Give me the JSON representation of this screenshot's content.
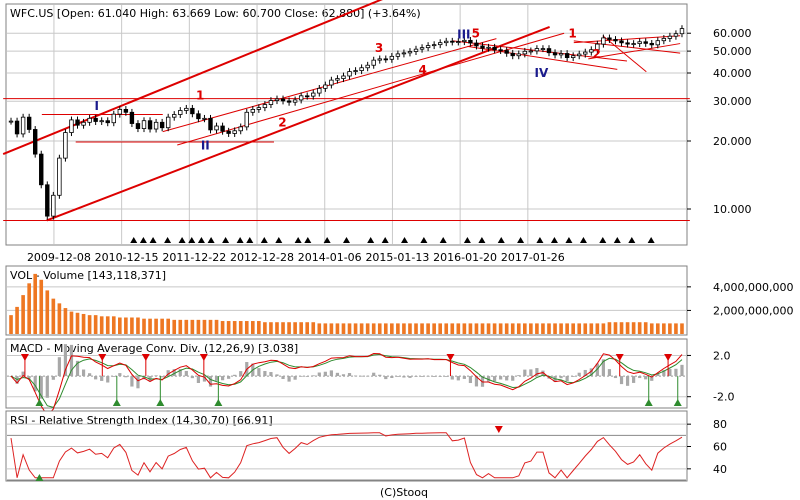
{
  "copyright": "(C)Stooq",
  "colors": {
    "bg": "#ffffff",
    "panel_border": "#808080",
    "grid": "#c8c8c8",
    "red": "#dd0000",
    "green": "#2e8b2e",
    "blue": "#1a1a8c",
    "volume": "#ee7722",
    "hist": "#a8a8a8",
    "rsi": "#dd2222"
  },
  "price": {
    "title": "WFC.US [Open: 61.040  High: 63.669  Low: 60.700  Close: 62.880] (+3.64%)",
    "y_ticks": [
      {
        "value": 10,
        "label": "10.000"
      },
      {
        "value": 20,
        "label": "20.000"
      },
      {
        "value": 30,
        "label": "30.000"
      },
      {
        "value": 40,
        "label": "40.000"
      },
      {
        "value": 50,
        "label": "50.000"
      },
      {
        "value": 60,
        "label": "60.000"
      }
    ],
    "x_ticks": [
      {
        "t": 9.5,
        "label": "2009-12-08"
      },
      {
        "t": 23.5,
        "label": "2010-12-15"
      },
      {
        "t": 37.5,
        "label": "2011-12-22"
      },
      {
        "t": 51.5,
        "label": "2012-12-28"
      },
      {
        "t": 65.5,
        "label": "2014-01-06"
      },
      {
        "t": 79.5,
        "label": "2015-01-13"
      },
      {
        "t": 93.5,
        "label": "2016-01-20"
      },
      {
        "t": 107.5,
        "label": "2017-01-26"
      }
    ],
    "annotations": [
      {
        "t": 18.5,
        "y": 27.5,
        "text": "I",
        "color": "blue"
      },
      {
        "t": 39.5,
        "y": 30.5,
        "text": "1",
        "color": "red"
      },
      {
        "t": 40.5,
        "y": 18.3,
        "text": "II",
        "color": "blue"
      },
      {
        "t": 56.5,
        "y": 23.2,
        "text": "2",
        "color": "red"
      },
      {
        "t": 76.5,
        "y": 49.5,
        "text": "3",
        "color": "red"
      },
      {
        "t": 85.5,
        "y": 39.5,
        "text": "4",
        "color": "red"
      },
      {
        "t": 93.5,
        "y": 56.8,
        "text": "III",
        "color": "blue"
      },
      {
        "t": 96.5,
        "y": 57.5,
        "text": "5",
        "color": "red"
      },
      {
        "t": 109.5,
        "y": 38.5,
        "text": "IV",
        "color": "blue"
      },
      {
        "t": 116.5,
        "y": 57.5,
        "text": "1",
        "color": "red"
      },
      {
        "t": 121.5,
        "y": 46.5,
        "text": "2",
        "color": "red"
      }
    ]
  },
  "volume": {
    "title": "VOL - Volume [143,118,371]",
    "y_ticks": [
      {
        "value": 2000000000,
        "label": "2,000,000,000"
      },
      {
        "value": 4000000000,
        "label": "4,000,000,000"
      }
    ]
  },
  "macd": {
    "title": "MACD - Moving Average Conv. Div. (12,26,9) [3.038]",
    "y_ticks": [
      {
        "value": 2,
        "label": "2.0"
      },
      {
        "value": -2,
        "label": "-2.0"
      }
    ]
  },
  "rsi": {
    "title": "RSI - Relative Strength Index (14,30,70) [66.91]",
    "y_ticks": [
      {
        "value": 40,
        "label": "40"
      },
      {
        "value": 60,
        "label": "60"
      },
      {
        "value": 80,
        "label": "80"
      }
    ]
  },
  "chart_data": {
    "type": "line",
    "title": "WFC.US [Open: 61.040  High: 63.669  Low: 60.700  Close: 62.880] (+3.64%)",
    "scale": "log",
    "ylim": [
      7,
      80
    ],
    "grid": true,
    "close": [
      24.5,
      21.5,
      25.5,
      22.5,
      17.5,
      12.8,
      9.3,
      11.5,
      16.8,
      21.8,
      24.8,
      23.5,
      24.2,
      25.2,
      24.4,
      24.6,
      24.1,
      26.3,
      27.6,
      26.8,
      23.9,
      22.7,
      24.6,
      22.6,
      24.2,
      22.9,
      25.5,
      26.2,
      27.3,
      27.9,
      26.4,
      25.1,
      25.2,
      22.4,
      23.3,
      22.1,
      21.6,
      22.2,
      23.1,
      26.8,
      27.6,
      28.1,
      29.0,
      30.2,
      30.7,
      30.1,
      29.7,
      30.4,
      31.7,
      31.6,
      32.6,
      34.2,
      35.4,
      37.2,
      37.8,
      38.8,
      40.6,
      41.0,
      42.2,
      43.3,
      45.6,
      46.2,
      46.0,
      47.4,
      48.6,
      49.1,
      49.8,
      51.0,
      51.8,
      52.9,
      53.4,
      54.5,
      55.3,
      54.9,
      55.1,
      55.8,
      54.3,
      52.7,
      51.5,
      52.0,
      50.7,
      50.3,
      48.9,
      47.7,
      48.6,
      49.9,
      50.1,
      51.3,
      51.3,
      49.2,
      48.1,
      48.8,
      46.8,
      47.7,
      48.5,
      49.5,
      50.7,
      53.7,
      57.2,
      56.3,
      55.5,
      54.4,
      53.7,
      54.0,
      55.0,
      54.1,
      53.3,
      55.6,
      56.9,
      58.2,
      59.7,
      62.9
    ],
    "volume": [
      1.6,
      2.3,
      3.3,
      4.3,
      5.1,
      4.6,
      3.7,
      3.0,
      2.6,
      2.2,
      1.9,
      1.8,
      1.7,
      1.6,
      1.6,
      1.5,
      1.5,
      1.5,
      1.4,
      1.4,
      1.4,
      1.4,
      1.3,
      1.3,
      1.3,
      1.3,
      1.3,
      1.2,
      1.2,
      1.2,
      1.2,
      1.2,
      1.2,
      1.2,
      1.2,
      1.1,
      1.1,
      1.1,
      1.1,
      1.1,
      1.1,
      1.1,
      1.0,
      1.0,
      1.0,
      1.0,
      1.0,
      1.0,
      1.0,
      1.0,
      1.0,
      0.9,
      0.9,
      0.9,
      0.9,
      0.9,
      0.9,
      0.9,
      0.9,
      0.9,
      0.9,
      0.9,
      0.9,
      0.9,
      0.9,
      0.9,
      0.9,
      0.9,
      0.9,
      0.9,
      0.9,
      0.9,
      0.9,
      0.9,
      0.9,
      0.9,
      0.9,
      0.9,
      0.9,
      0.9,
      0.9,
      0.9,
      0.9,
      0.9,
      0.9,
      0.9,
      0.9,
      0.9,
      0.9,
      0.9,
      0.9,
      0.9,
      0.9,
      0.9,
      0.9,
      0.9,
      0.9,
      0.9,
      0.9,
      1.0,
      1.0,
      1.0,
      1.0,
      1.0,
      1.0,
      1.0,
      0.9,
      0.9,
      0.9,
      0.9,
      0.9,
      0.9
    ],
    "macd_signals": [
      {
        "t": 3.5,
        "type": "sell"
      },
      {
        "t": 6.5,
        "type": "buy"
      },
      {
        "t": 19.5,
        "type": "sell"
      },
      {
        "t": 22.5,
        "type": "buy"
      },
      {
        "t": 28.5,
        "type": "sell"
      },
      {
        "t": 31.5,
        "type": "buy"
      },
      {
        "t": 40.5,
        "type": "sell"
      },
      {
        "t": 43.5,
        "type": "buy"
      },
      {
        "t": 91.5,
        "type": "sell"
      },
      {
        "t": 126.5,
        "type": "sell"
      },
      {
        "t": 132.5,
        "type": "buy"
      },
      {
        "t": 136.5,
        "type": "sell"
      },
      {
        "t": 138.5,
        "type": "buy"
      }
    ],
    "rsi_signals": [
      {
        "t": 6.5,
        "type": "buy"
      },
      {
        "t": 101.5,
        "type": "sell"
      }
    ]
  }
}
